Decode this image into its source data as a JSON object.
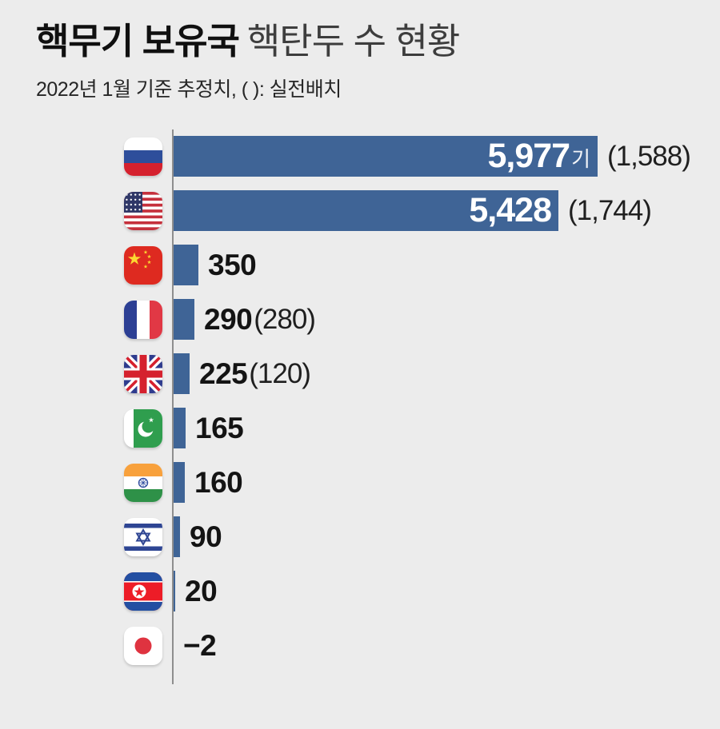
{
  "title": {
    "emphasis": "핵무기 보유국",
    "rest": "핵탄두 수 현황"
  },
  "subtitle": "2022년 1월 기준 추정치, ( ): 실전배치",
  "chart_data": {
    "type": "bar",
    "orientation": "horizontal",
    "title": "핵무기 보유국 핵탄두 수 현황",
    "subtitle": "2022년 1월 기준 추정치",
    "legend_note": "( ): 실전배치",
    "unit": "기",
    "categories": [
      "러시아",
      "미국",
      "중국",
      "프랑스",
      "영국",
      "파키스탄",
      "인도",
      "이스라엘",
      "북한",
      "일본"
    ],
    "values": [
      5977,
      5428,
      350,
      290,
      225,
      165,
      160,
      90,
      20,
      -2
    ],
    "deployed_values": [
      1588,
      1744,
      null,
      280,
      120,
      null,
      null,
      null,
      null,
      null
    ],
    "xlim": [
      0,
      5977
    ],
    "grid": false,
    "legend_position": "none"
  },
  "rows": [
    {
      "id": "russia",
      "country": "러시아",
      "value": 5977,
      "value_label": "5,977",
      "unit_suffix": "기",
      "deployed_label": "(1,588)",
      "label_inside": true
    },
    {
      "id": "usa",
      "country": "미국",
      "value": 5428,
      "value_label": "5,428",
      "unit_suffix": "",
      "deployed_label": "(1,744)",
      "label_inside": true
    },
    {
      "id": "china",
      "country": "중국",
      "value": 350,
      "value_label": "350",
      "unit_suffix": "",
      "deployed_label": "",
      "label_inside": false
    },
    {
      "id": "france",
      "country": "프랑스",
      "value": 290,
      "value_label": "290",
      "unit_suffix": "",
      "deployed_label": "(280)",
      "label_inside": false
    },
    {
      "id": "uk",
      "country": "영국",
      "value": 225,
      "value_label": "225",
      "unit_suffix": "",
      "deployed_label": "(120)",
      "label_inside": false
    },
    {
      "id": "pakistan",
      "country": "파키스탄",
      "value": 165,
      "value_label": "165",
      "unit_suffix": "",
      "deployed_label": "",
      "label_inside": false
    },
    {
      "id": "india",
      "country": "인도",
      "value": 160,
      "value_label": "160",
      "unit_suffix": "",
      "deployed_label": "",
      "label_inside": false
    },
    {
      "id": "israel",
      "country": "이스라엘",
      "value": 90,
      "value_label": "90",
      "unit_suffix": "",
      "deployed_label": "",
      "label_inside": false
    },
    {
      "id": "north-korea",
      "country": "북한",
      "value": 20,
      "value_label": "20",
      "unit_suffix": "",
      "deployed_label": "",
      "label_inside": false
    },
    {
      "id": "japan",
      "country": "일본",
      "value": -2,
      "value_label": "−2",
      "unit_suffix": "",
      "deployed_label": "",
      "label_inside": false
    }
  ],
  "colors": {
    "background": "#ECECEC",
    "bar": "#3F6496",
    "axis": "#8E8E8E",
    "value_text": "#141414",
    "inside_value_text": "#FFFFFF",
    "title_emphasis": "#101010",
    "title_rest": "#3D3D3D"
  }
}
